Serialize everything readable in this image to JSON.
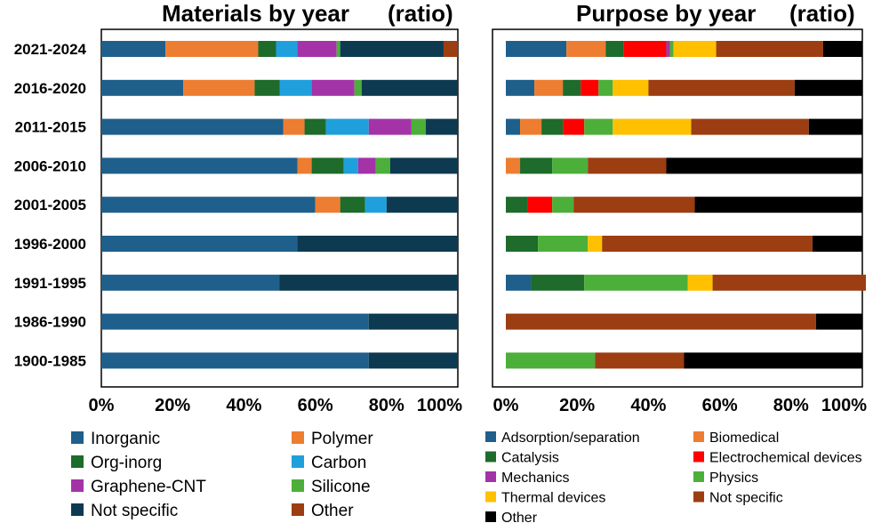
{
  "chart_data": [
    {
      "type": "bar",
      "orientation": "horizontal",
      "stacked": true,
      "title": "Materials by year",
      "title_note": "(ratio)",
      "categories": [
        "2021-2024",
        "2016-2020",
        "2011-2015",
        "2006-2010",
        "2001-2005",
        "1996-2000",
        "1991-1995",
        "1986-1990",
        "1900-1985"
      ],
      "xlim": [
        0,
        100
      ],
      "x_ticks": [
        "0%",
        "20%",
        "40%",
        "60%",
        "80%",
        "100%"
      ],
      "legend_position": "bottom",
      "series": [
        {
          "name": "Inorganic",
          "color": "#1f5f8b",
          "values": [
            18,
            23,
            51,
            55,
            60,
            55,
            50,
            75,
            75
          ]
        },
        {
          "name": "Polymer",
          "color": "#ed7d31",
          "values": [
            26,
            20,
            6,
            4,
            7,
            0,
            0,
            0,
            0
          ]
        },
        {
          "name": "Org-inorg",
          "color": "#1e6b2b",
          "values": [
            5,
            7,
            6,
            9,
            7,
            0,
            0,
            0,
            0
          ]
        },
        {
          "name": "Carbon",
          "color": "#1fa0dc",
          "values": [
            6,
            9,
            12,
            4,
            6,
            0,
            0,
            0,
            0
          ]
        },
        {
          "name": "Graphene-CNT",
          "color": "#a433a8",
          "values": [
            11,
            12,
            12,
            5,
            0,
            0,
            0,
            0,
            0
          ]
        },
        {
          "name": "Silicone",
          "color": "#4caf3a",
          "values": [
            1,
            2,
            4,
            4,
            0,
            0,
            0,
            0,
            0
          ]
        },
        {
          "name": "Not specific",
          "color": "#0d3a50",
          "values": [
            29,
            27,
            9,
            19,
            20,
            45,
            50,
            25,
            25
          ]
        },
        {
          "name": "Other",
          "color": "#9c3d12",
          "values": [
            4,
            0,
            0,
            0,
            0,
            0,
            0,
            0,
            0
          ]
        }
      ]
    },
    {
      "type": "bar",
      "orientation": "horizontal",
      "stacked": true,
      "title": "Purpose by year",
      "title_note": "(ratio)",
      "categories": [
        "2021-2024",
        "2016-2020",
        "2011-2015",
        "2006-2010",
        "2001-2005",
        "1996-2000",
        "1991-1995",
        "1986-1990",
        "1900-1985"
      ],
      "xlim": [
        0,
        100
      ],
      "x_ticks": [
        "0%",
        "20%",
        "40%",
        "60%",
        "80%",
        "100%"
      ],
      "legend_position": "bottom",
      "series": [
        {
          "name": "Adsorption/separation",
          "color": "#1f5f8b",
          "values": [
            17,
            8,
            4,
            0,
            0,
            0,
            7,
            0,
            0
          ]
        },
        {
          "name": "Biomedical",
          "color": "#ed7d31",
          "values": [
            11,
            8,
            6,
            4,
            0,
            0,
            0,
            0,
            0
          ]
        },
        {
          "name": "Catalysis",
          "color": "#1e6b2b",
          "values": [
            5,
            5,
            6,
            9,
            6,
            9,
            15,
            0,
            0
          ]
        },
        {
          "name": "Electrochemical devices",
          "color": "#ff0000",
          "values": [
            12,
            5,
            6,
            0,
            7,
            0,
            0,
            0,
            0
          ]
        },
        {
          "name": "Mechanics",
          "color": "#a433a8",
          "values": [
            1,
            0,
            0,
            0,
            0,
            0,
            0,
            0,
            0
          ]
        },
        {
          "name": "Physics",
          "color": "#4caf3a",
          "values": [
            1,
            4,
            8,
            10,
            6,
            14,
            29,
            0,
            25
          ]
        },
        {
          "name": "Thermal devices",
          "color": "#ffc000",
          "values": [
            12,
            10,
            22,
            0,
            0,
            4,
            7,
            0,
            0
          ]
        },
        {
          "name": "Not specific",
          "color": "#9c3d12",
          "values": [
            30,
            41,
            33,
            22,
            34,
            59,
            43,
            87,
            25
          ]
        },
        {
          "name": "Other",
          "color": "#000000",
          "values": [
            11,
            19,
            15,
            55,
            47,
            14,
            0,
            13,
            50
          ]
        }
      ]
    }
  ]
}
